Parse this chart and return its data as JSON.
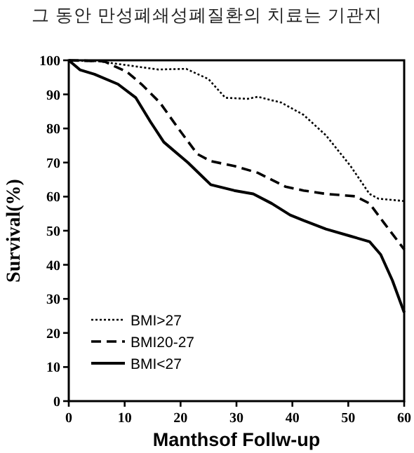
{
  "chart_data": {
    "type": "line",
    "annotations": [
      "그 동안 만성폐쇄성폐질환의 치료는 기관지"
    ],
    "xlabel": "Manthsof Follw-up",
    "ylabel": "Survival(%)",
    "xlim": [
      0,
      60
    ],
    "ylim": [
      0,
      100
    ],
    "xticks": [
      0,
      10,
      20,
      30,
      40,
      50,
      60
    ],
    "yticks": [
      0,
      10,
      20,
      30,
      40,
      50,
      60,
      70,
      80,
      90,
      100
    ],
    "legend": "bottom left",
    "series": [
      {
        "name": "BMI>27",
        "color": "#000000",
        "line_style": "dotted",
        "x": [
          0,
          5.4,
          12.9,
          16,
          21,
          25,
          28,
          32,
          33.8,
          38,
          42,
          46,
          50.4,
          53.8,
          55.4,
          60
        ],
        "values": [
          100,
          99.7,
          98,
          97.3,
          97.5,
          94.5,
          89,
          88.7,
          89.3,
          87.6,
          84,
          78,
          69,
          60.8,
          59.4,
          58.7
        ]
      },
      {
        "name": "BMI20-27",
        "color": "#000000",
        "line_style": "dashed",
        "x": [
          0,
          6.3,
          10.4,
          13,
          16.3,
          19.6,
          23,
          25.4,
          29.6,
          33.8,
          38.8,
          42,
          46,
          51.3,
          53.8,
          56.3,
          60
        ],
        "values": [
          100,
          99.7,
          96.6,
          93,
          87.6,
          80,
          72.5,
          70.4,
          69,
          67,
          62.9,
          61.8,
          60.8,
          60.1,
          58,
          52.5,
          44.5
        ]
      },
      {
        "name": "BMI<27",
        "color": "#000000",
        "line_style": "solid",
        "x": [
          0,
          2,
          4.6,
          8.8,
          12,
          14.6,
          17,
          21.3,
          25.4,
          29.6,
          33,
          36.3,
          39.6,
          42,
          46,
          50.4,
          53.8,
          55.8,
          57.9,
          60
        ],
        "values": [
          100,
          97.2,
          95.9,
          93,
          89,
          82,
          76,
          70,
          63.5,
          61.8,
          60.8,
          58,
          54.6,
          53,
          50.5,
          48.4,
          46.8,
          43,
          35.4,
          26
        ]
      }
    ]
  }
}
